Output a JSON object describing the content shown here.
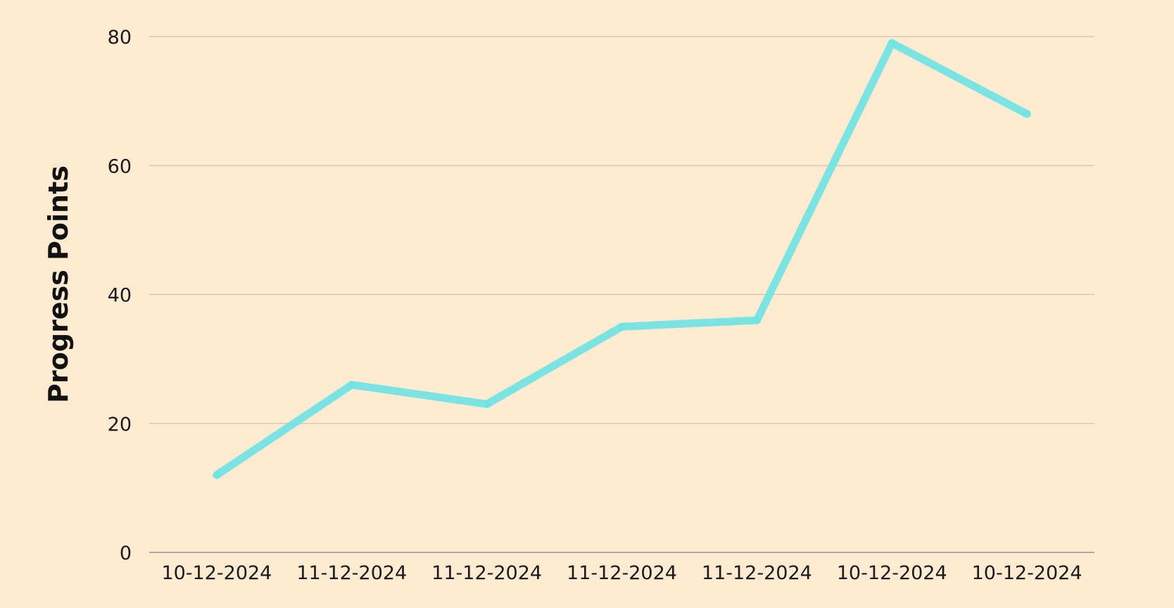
{
  "chart_data": {
    "type": "line",
    "title": "",
    "xlabel": "",
    "ylabel": "Progress Points",
    "categories": [
      "10-12-2024",
      "11-12-2024",
      "11-12-2024",
      "11-12-2024",
      "11-12-2024",
      "10-12-2024",
      "10-12-2024"
    ],
    "series": [
      {
        "values": [
          12,
          26,
          23,
          35,
          36,
          79,
          68
        ],
        "color": "#6de3e3"
      }
    ],
    "ylim": [
      0,
      80
    ],
    "yticks": [
      0,
      20,
      40,
      60,
      80
    ],
    "grid": true,
    "legend": "none"
  },
  "colors": {
    "background": "#feebd2",
    "line": "#6de3e3",
    "grid": "#cfc2b0"
  }
}
